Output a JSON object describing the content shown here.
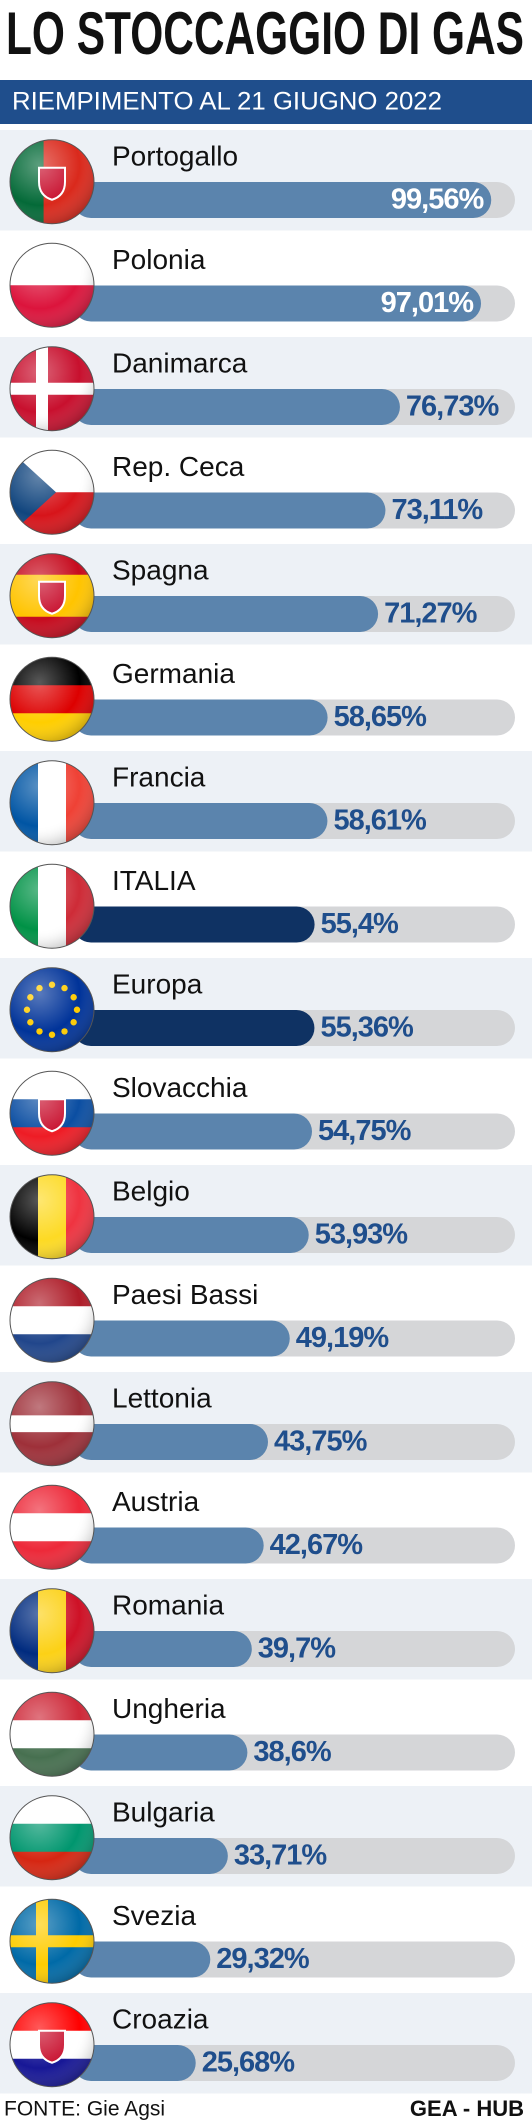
{
  "chart_data": {
    "type": "bar",
    "orientation": "horizontal",
    "title": "LO STOCCAGGIO DI GAS",
    "subtitle": "RIEMPIMENTO AL 21 GIUGNO 2022",
    "categories": [
      "Portogallo",
      "Polonia",
      "Danimarca",
      "Rep. Ceca",
      "Spagna",
      "Germania",
      "Francia",
      "ITALIA",
      "Europa",
      "Slovacchia",
      "Belgio",
      "Paesi Bassi",
      "Lettonia",
      "Austria",
      "Romania",
      "Ungheria",
      "Bulgaria",
      "Svezia",
      "Croazia"
    ],
    "values": [
      99.56,
      97.01,
      76.73,
      73.11,
      71.27,
      58.65,
      58.61,
      55.4,
      55.36,
      54.75,
      53.93,
      49.19,
      43.75,
      42.67,
      39.7,
      38.6,
      33.71,
      29.32,
      25.68
    ],
    "value_labels": [
      "99,56%",
      "97,01%",
      "76,73%",
      "73,11%",
      "71,27%",
      "58,65%",
      "58,61%",
      "55,4%",
      "55,36%",
      "54,75%",
      "53,93%",
      "49,19%",
      "43,75%",
      "42,67%",
      "39,7%",
      "38,6%",
      "33,71%",
      "29,32%",
      "25,68%"
    ],
    "colors": [
      "#5b84ad",
      "#5b84ad",
      "#5b84ad",
      "#5b84ad",
      "#5b84ad",
      "#5b84ad",
      "#5b84ad",
      "#0f3263",
      "#0f3263",
      "#5b84ad",
      "#5b84ad",
      "#5b84ad",
      "#5b84ad",
      "#5b84ad",
      "#5b84ad",
      "#5b84ad",
      "#5b84ad",
      "#5b84ad",
      "#5b84ad"
    ],
    "source": "FONTE: Gie Agsi",
    "credit": "GEA - HUB"
  }
}
